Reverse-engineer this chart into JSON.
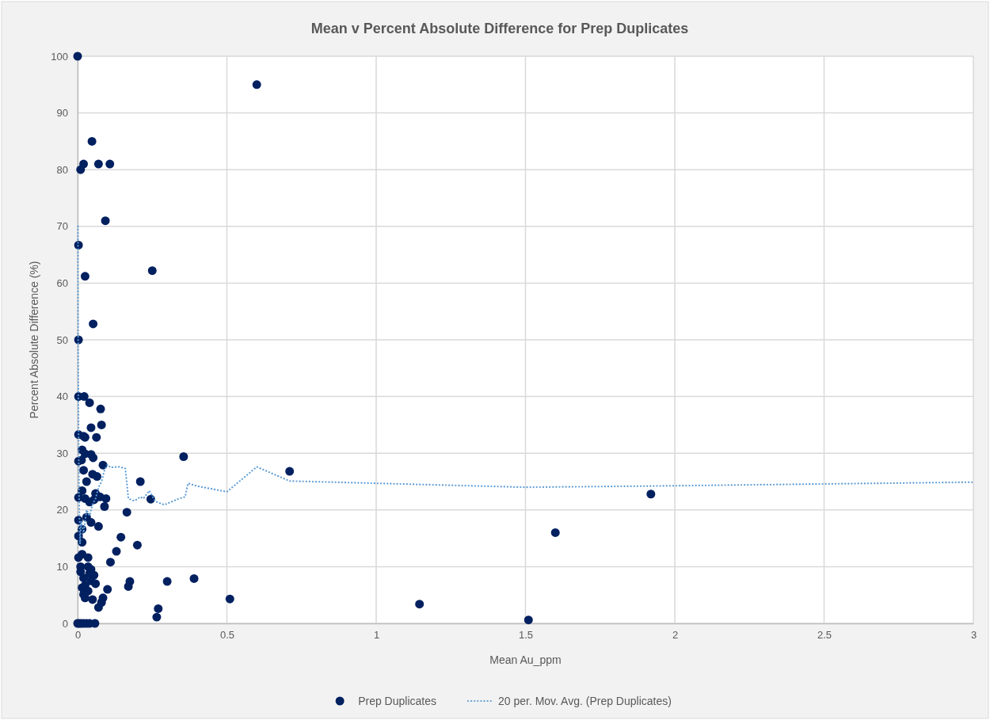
{
  "chart_data": {
    "type": "scatter",
    "title": "Mean v Percent Absolute Difference for Prep Duplicates",
    "xlabel": "Mean Au_ppm",
    "ylabel": "Percent Absolute Difference (%)",
    "xlim": [
      0,
      3
    ],
    "xticks": [
      0,
      0.5,
      1,
      1.5,
      2,
      2.5,
      3
    ],
    "ylim": [
      0,
      100
    ],
    "yticks": [
      0,
      10,
      20,
      30,
      40,
      50,
      60,
      70,
      80,
      90,
      100
    ],
    "grid": true,
    "legend": "bottom",
    "series": [
      {
        "name": "Prep Duplicates",
        "marker": "circle",
        "color": "#002060",
        "x": [
          0,
          0.6,
          0.048,
          0.07,
          0.108,
          0.02,
          0.01,
          0.093,
          0.003,
          0.025,
          0.25,
          0.052,
          0.003,
          0.003,
          0.022,
          0.04,
          0.077,
          0.08,
          0.045,
          0.003,
          0.02,
          0.025,
          0.063,
          0.015,
          0.025,
          0.045,
          0.052,
          0.003,
          0.013,
          0.085,
          0.355,
          0.71,
          0.02,
          0.05,
          0.065,
          0.03,
          0.21,
          0.015,
          0.06,
          0.003,
          0.025,
          0.075,
          0.095,
          0.245,
          1.92,
          0.04,
          0.055,
          0.09,
          0.165,
          0.003,
          0.03,
          0.045,
          0.07,
          1.6,
          0.015,
          0.003,
          0.145,
          0.015,
          0.2,
          0.13,
          0.015,
          0.003,
          0.035,
          0.11,
          0.01,
          0.035,
          0.045,
          0.01,
          0.04,
          0.055,
          0.02,
          0.3,
          0.39,
          0.175,
          0.17,
          0.045,
          0.06,
          0.015,
          0.025,
          0.1,
          0.035,
          0.02,
          0.025,
          0.085,
          0.05,
          0.08,
          0.51,
          1.145,
          0.07,
          0.27,
          0.265,
          1.51,
          0,
          0.005,
          0.012,
          0.02,
          0.03,
          0.04,
          0.058
        ],
        "values": [
          100,
          95,
          85,
          81,
          81,
          81,
          80,
          71,
          66.7,
          61.2,
          62.2,
          52.8,
          50,
          40,
          40,
          38.9,
          37.8,
          35,
          34.5,
          33.3,
          33,
          32.8,
          32.8,
          30.6,
          29.9,
          29.8,
          29.2,
          28.6,
          28.8,
          27.9,
          29.4,
          26.8,
          27,
          26.3,
          25.9,
          25,
          25,
          23.4,
          22.9,
          22.2,
          22,
          22.3,
          22,
          21.9,
          22.8,
          21.4,
          21.8,
          20.6,
          19.6,
          18.2,
          18.7,
          17.8,
          17.1,
          16,
          16.6,
          15.4,
          15.2,
          14.3,
          13.8,
          12.7,
          12.2,
          11.6,
          11.6,
          10.8,
          10,
          10,
          9.5,
          9.1,
          8.8,
          8.5,
          8,
          7.4,
          7.9,
          7.4,
          6.5,
          7.5,
          7,
          6.3,
          6.7,
          6,
          5.7,
          5.1,
          4.5,
          4.5,
          4.2,
          3.7,
          4.3,
          3.4,
          2.8,
          2.6,
          1.1,
          0.6,
          0,
          0,
          0,
          0,
          0,
          0,
          0
        ]
      },
      {
        "name": "20 per. Mov. Avg. (Prep Duplicates)",
        "type": "line",
        "line_style": "dotted",
        "marker": "none",
        "color": "#5b9bd5",
        "x": [
          0.001,
          0.002,
          0.003,
          0.005,
          0.008,
          0.012,
          0.02,
          0.03,
          0.04,
          0.05,
          0.06,
          0.07,
          0.08,
          0.09,
          0.1,
          0.11,
          0.14,
          0.16,
          0.17,
          0.19,
          0.21,
          0.22,
          0.24,
          0.26,
          0.29,
          0.34,
          0.36,
          0.37,
          0.4,
          0.5,
          0.6,
          0.71,
          1.5,
          1.9,
          3
        ],
        "values": [
          70,
          45,
          35,
          22,
          14,
          18,
          16,
          20,
          19,
          21,
          22,
          24,
          25,
          27,
          28,
          27.5,
          27.6,
          27.3,
          22,
          21.6,
          22.3,
          22,
          23.4,
          21.5,
          20.9,
          22,
          22.3,
          24.7,
          24.2,
          23.2,
          27.6,
          25.1,
          24,
          24.2,
          24.9
        ]
      }
    ]
  }
}
